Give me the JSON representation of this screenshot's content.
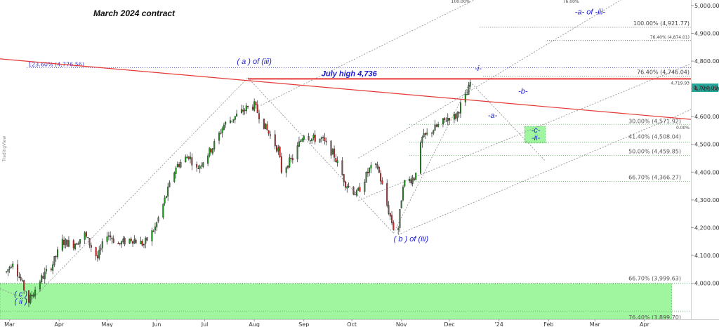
{
  "chart_data": {
    "type": "candlestick",
    "title": "March 2024 contract",
    "watermark": "TradingView",
    "y_axis": {
      "ylim": [
        3870,
        5020
      ],
      "ticks": [
        {
          "value": 4900,
          "label": "4,900.00"
        },
        {
          "value": 4800,
          "label": "4,800.00"
        },
        {
          "value": 4700,
          "label": "4,700.00"
        },
        {
          "value": 4600,
          "label": "4,600.00"
        },
        {
          "value": 4500,
          "label": "4,500.00"
        },
        {
          "value": 4400,
          "label": "4,400.00"
        },
        {
          "value": 4300,
          "label": "4,300.00"
        },
        {
          "value": 4200,
          "label": "4,200.00"
        },
        {
          "value": 4100,
          "label": "4,100.00"
        },
        {
          "value": 4000,
          "label": "4,000.00"
        },
        {
          "value": 5000,
          "label": "5,000.00"
        }
      ],
      "last_price": {
        "value": 4704,
        "label": "4,704.00",
        "color": "#26a69a"
      }
    },
    "x_axis": {
      "xlim": [
        "2023-02-23",
        "2024-04-30"
      ],
      "ticks": [
        {
          "date": "2023-03-01",
          "label": "Mar"
        },
        {
          "date": "2023-04-01",
          "label": "Apr"
        },
        {
          "date": "2023-05-01",
          "label": "May"
        },
        {
          "date": "2023-06-01",
          "label": "Jun"
        },
        {
          "date": "2023-07-01",
          "label": "Jul"
        },
        {
          "date": "2023-08-01",
          "label": "Aug"
        },
        {
          "date": "2023-09-01",
          "label": "Sep"
        },
        {
          "date": "2023-10-01",
          "label": "Oct"
        },
        {
          "date": "2023-11-01",
          "label": "Nov"
        },
        {
          "date": "2023-12-01",
          "label": "Dec"
        },
        {
          "date": "2024-01-01",
          "label": "'24"
        },
        {
          "date": "2024-02-01",
          "label": "Feb"
        },
        {
          "date": "2024-03-01",
          "label": "Mar"
        },
        {
          "date": "2024-04-01",
          "label": "Apr"
        }
      ]
    },
    "price_path": [
      [
        "2023-02-27",
        4040
      ],
      [
        "2023-03-03",
        4080
      ],
      [
        "2023-03-08",
        4010
      ],
      [
        "2023-03-13",
        3935
      ],
      [
        "2023-03-20",
        4010
      ],
      [
        "2023-03-28",
        4070
      ],
      [
        "2023-04-03",
        4150
      ],
      [
        "2023-04-10",
        4140
      ],
      [
        "2023-04-17",
        4175
      ],
      [
        "2023-04-25",
        4090
      ],
      [
        "2023-05-01",
        4180
      ],
      [
        "2023-05-08",
        4140
      ],
      [
        "2023-05-16",
        4160
      ],
      [
        "2023-05-24",
        4140
      ],
      [
        "2023-05-31",
        4200
      ],
      [
        "2023-06-06",
        4300
      ],
      [
        "2023-06-13",
        4420
      ],
      [
        "2023-06-21",
        4460
      ],
      [
        "2023-06-26",
        4410
      ],
      [
        "2023-07-06",
        4490
      ],
      [
        "2023-07-13",
        4570
      ],
      [
        "2023-07-20",
        4600
      ],
      [
        "2023-07-27",
        4630
      ],
      [
        "2023-08-01",
        4640
      ],
      [
        "2023-08-08",
        4560
      ],
      [
        "2023-08-16",
        4480
      ],
      [
        "2023-08-18",
        4405
      ],
      [
        "2023-08-25",
        4450
      ],
      [
        "2023-09-01",
        4540
      ],
      [
        "2023-09-06",
        4520
      ],
      [
        "2023-09-12",
        4520
      ],
      [
        "2023-09-20",
        4460
      ],
      [
        "2023-09-27",
        4360
      ],
      [
        "2023-10-04",
        4320
      ],
      [
        "2023-10-12",
        4410
      ],
      [
        "2023-10-17",
        4420
      ],
      [
        "2023-10-23",
        4280
      ],
      [
        "2023-10-27",
        4200
      ],
      [
        "2023-10-30",
        4200
      ],
      [
        "2023-11-02",
        4360
      ],
      [
        "2023-11-09",
        4380
      ],
      [
        "2023-11-14",
        4520
      ],
      [
        "2023-11-20",
        4550
      ],
      [
        "2023-11-27",
        4580
      ],
      [
        "2023-12-01",
        4600
      ],
      [
        "2023-12-05",
        4600
      ],
      [
        "2023-12-08",
        4640
      ],
      [
        "2023-12-12",
        4680
      ],
      [
        "2023-12-14",
        4720
      ]
    ],
    "horizontal_levels": [
      {
        "label": "123.60% (4,776.56)",
        "value": 4776.56,
        "color": "#3a3acb",
        "style": "dotted"
      },
      {
        "label": "100.00% (4,921.77)",
        "value": 4921.77,
        "color": "#555555",
        "style": "dotted"
      },
      {
        "label": "76.40% (4,874.01)",
        "value": 4874.01,
        "color": "#555555",
        "style": "dotted"
      },
      {
        "label": "76.40% (4,746.04)",
        "value": 4746.04,
        "color": "#555555",
        "style": "dotted"
      },
      {
        "label": "30.00% (4,571.92)",
        "value": 4571.92,
        "color": "#4caf50",
        "style": "dotted"
      },
      {
        "label": "41.40% (4,508.04)",
        "value": 4508.04,
        "color": "#4caf50",
        "style": "dotted"
      },
      {
        "label": "50.00% (4,459.85)",
        "value": 4459.85,
        "color": "#4caf50",
        "style": "dotted"
      },
      {
        "label": "66.70% (4,366.27)",
        "value": 4366.27,
        "color": "#4caf50",
        "style": "dotted"
      },
      {
        "label": "66.70% (3,999.63)",
        "value": 3999.63,
        "color": "#4caf50",
        "style": "dotted"
      },
      {
        "label": "76.40% (3,899.70)",
        "value": 3899.7,
        "color": "#4caf50",
        "style": "dotted"
      },
      {
        "label": "100.00%",
        "value": 5020,
        "color": "#555555",
        "style": "dotted"
      },
      {
        "label": "76.00%",
        "value": 5020,
        "color": "#555555",
        "style": "dotted"
      },
      {
        "label": "0.00%",
        "value": 4557,
        "color": "#555555",
        "style": "none"
      },
      {
        "label": "4,719.93",
        "value": 4719.93,
        "color": "#555555",
        "style": "none"
      }
    ],
    "july_high": {
      "label": "July high 4,736",
      "value": 4736,
      "color": "#e53935"
    },
    "trendline": {
      "from": [
        "2023-02-23",
        4808
      ],
      "to": [
        "2024-04-30",
        4590
      ],
      "color": "#e53935"
    },
    "annotations": [
      {
        "text": "( a ) of (iii)",
        "date": "2023-08-01",
        "value": 4790
      },
      {
        "text": "( b ) of (iii)",
        "date": "2023-11-07",
        "value": 4150
      },
      {
        "text": "( c )",
        "date": "2023-03-08",
        "value": 3952
      },
      {
        "text": "( ii )",
        "date": "2023-03-08",
        "value": 3926
      },
      {
        "text": "-a- of -iii-",
        "date": "2024-02-27",
        "value": 4968
      },
      {
        "text": "-i-",
        "date": "2023-12-19",
        "value": 4765
      },
      {
        "text": "-b-",
        "date": "2024-01-16",
        "value": 4682
      },
      {
        "text": "-a-",
        "date": "2023-12-28",
        "value": 4595
      },
      {
        "text": "-c-",
        "date": "2024-01-24",
        "value": 4542
      },
      {
        "text": "-ii-",
        "date": "2024-01-24",
        "value": 4515
      }
    ],
    "zones": [
      {
        "name": "support",
        "from": [
          "2023-02-23",
          3998
        ],
        "to": [
          "2024-04-18",
          3870
        ],
        "color": "#8ef58e"
      },
      {
        "name": "target",
        "from": [
          "2024-01-17",
          4565
        ],
        "to": [
          "2024-01-30",
          4505
        ],
        "color": "#8ef58e"
      }
    ]
  }
}
